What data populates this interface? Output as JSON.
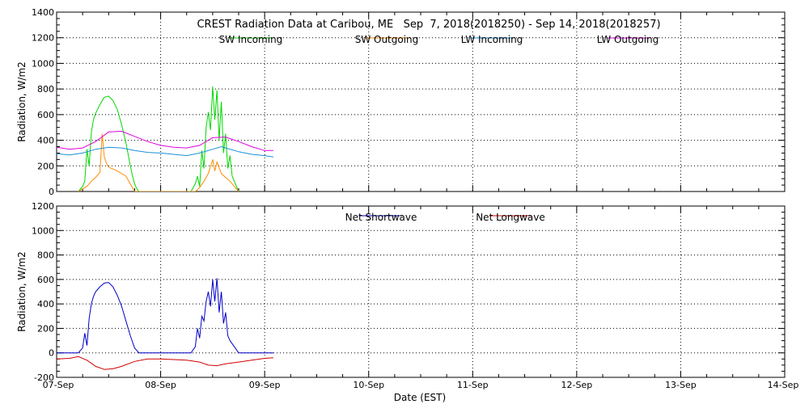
{
  "chart_data": [
    {
      "type": "line",
      "title": "CREST Radiation Data at Caribou, ME   Sep  7, 2018(2018250) - Sep 14, 2018(2018257)",
      "xlabel": "",
      "ylabel": "Radiation, W/m2",
      "ylim": [
        0,
        1400
      ],
      "yticks": [
        0,
        200,
        400,
        600,
        800,
        1000,
        1200,
        1400
      ],
      "xlim": [
        "2018-09-07",
        "2018-09-14"
      ],
      "grid": true,
      "legend_placement": "top",
      "series": [
        {
          "name": "SW Incoming",
          "color": "#00d800",
          "x": [
            "2018-09-07T05:00",
            "2018-09-07T06:00",
            "2018-09-07T06:30",
            "2018-09-07T07:00",
            "2018-09-07T07:30",
            "2018-09-07T08:00",
            "2018-09-07T08:30",
            "2018-09-07T09:00",
            "2018-09-07T10:00",
            "2018-09-07T11:00",
            "2018-09-07T12:00",
            "2018-09-07T13:00",
            "2018-09-07T14:00",
            "2018-09-07T15:00",
            "2018-09-07T16:00",
            "2018-09-07T17:00",
            "2018-09-07T17:30",
            "2018-09-07T18:00",
            "2018-09-07T18:30",
            "2018-09-07T19:00",
            "2018-09-08T07:00",
            "2018-09-08T08:00",
            "2018-09-08T08:30",
            "2018-09-08T09:00",
            "2018-09-08T09:30",
            "2018-09-08T10:00",
            "2018-09-08T10:30",
            "2018-09-08T11:00",
            "2018-09-08T11:30",
            "2018-09-08T12:00",
            "2018-09-08T12:30",
            "2018-09-08T13:00",
            "2018-09-08T13:30",
            "2018-09-08T14:00",
            "2018-09-08T14:30",
            "2018-09-08T15:00",
            "2018-09-08T15:30",
            "2018-09-08T16:00",
            "2018-09-08T16:30",
            "2018-09-08T17:00",
            "2018-09-08T17:30",
            "2018-09-08T18:00"
          ],
          "values": [
            0,
            40,
            80,
            330,
            200,
            460,
            560,
            610,
            680,
            735,
            745,
            710,
            640,
            520,
            380,
            200,
            120,
            60,
            20,
            0,
            0,
            60,
            120,
            40,
            320,
            180,
            500,
            620,
            480,
            820,
            560,
            790,
            400,
            700,
            300,
            450,
            180,
            280,
            120,
            80,
            40,
            0
          ]
        },
        {
          "name": "SW Outgoing",
          "color": "#ff8c00",
          "x": [
            "2018-09-07T05:00",
            "2018-09-07T07:00",
            "2018-09-07T08:00",
            "2018-09-07T09:00",
            "2018-09-07T10:00",
            "2018-09-07T10:30",
            "2018-09-07T11:00",
            "2018-09-07T11:30",
            "2018-09-07T12:00",
            "2018-09-07T14:00",
            "2018-09-07T16:00",
            "2018-09-07T17:00",
            "2018-09-07T18:00",
            "2018-09-08T08:00",
            "2018-09-08T09:00",
            "2018-09-08T10:00",
            "2018-09-08T11:00",
            "2018-09-08T12:00",
            "2018-09-08T12:30",
            "2018-09-08T13:00",
            "2018-09-08T14:00",
            "2018-09-08T15:00",
            "2018-09-08T16:00",
            "2018-09-08T17:00",
            "2018-09-08T18:00"
          ],
          "values": [
            0,
            40,
            80,
            110,
            150,
            450,
            270,
            220,
            190,
            160,
            120,
            60,
            0,
            0,
            30,
            80,
            140,
            250,
            160,
            230,
            140,
            110,
            80,
            40,
            0
          ]
        },
        {
          "name": "LW Incoming",
          "color": "#1a90d8",
          "x": [
            "2018-09-07T00:00",
            "2018-09-07T03:00",
            "2018-09-07T06:00",
            "2018-09-07T09:00",
            "2018-09-07T12:00",
            "2018-09-07T15:00",
            "2018-09-07T18:00",
            "2018-09-07T21:00",
            "2018-09-08T00:00",
            "2018-09-08T03:00",
            "2018-09-08T06:00",
            "2018-09-08T09:00",
            "2018-09-08T12:00",
            "2018-09-08T14:00",
            "2018-09-08T15:00",
            "2018-09-08T18:00",
            "2018-09-08T21:00",
            "2018-09-09T00:00",
            "2018-09-09T02:00"
          ],
          "values": [
            295,
            285,
            300,
            330,
            345,
            340,
            320,
            305,
            300,
            290,
            280,
            300,
            330,
            350,
            340,
            310,
            290,
            280,
            270
          ]
        },
        {
          "name": "LW Outgoing",
          "color": "#e000e0",
          "x": [
            "2018-09-07T00:00",
            "2018-09-07T03:00",
            "2018-09-07T06:00",
            "2018-09-07T09:00",
            "2018-09-07T12:00",
            "2018-09-07T15:00",
            "2018-09-07T18:00",
            "2018-09-07T21:00",
            "2018-09-08T00:00",
            "2018-09-08T03:00",
            "2018-09-08T06:00",
            "2018-09-08T09:00",
            "2018-09-08T12:00",
            "2018-09-08T15:00",
            "2018-09-08T18:00",
            "2018-09-08T21:00",
            "2018-09-09T00:00",
            "2018-09-09T02:00"
          ],
          "values": [
            345,
            330,
            340,
            390,
            465,
            470,
            430,
            390,
            360,
            345,
            340,
            360,
            420,
            425,
            390,
            350,
            320,
            320
          ]
        }
      ]
    },
    {
      "type": "line",
      "title": "",
      "xlabel": "Date (EST)",
      "ylabel": "Radiation, W/m2",
      "ylim": [
        -200,
        1200
      ],
      "yticks": [
        -200,
        0,
        200,
        400,
        600,
        800,
        1000,
        1200
      ],
      "xlim": [
        "2018-09-07",
        "2018-09-14"
      ],
      "xticks": [
        "07-Sep",
        "08-Sep",
        "09-Sep",
        "10-Sep",
        "11-Sep",
        "12-Sep",
        "13-Sep",
        "14-Sep"
      ],
      "grid": true,
      "legend_placement": "top",
      "series": [
        {
          "name": "Net Shortwave",
          "color": "#0000c8",
          "x": [
            "2018-09-07T00:00",
            "2018-09-07T05:00",
            "2018-09-07T06:00",
            "2018-09-07T06:30",
            "2018-09-07T07:00",
            "2018-09-07T07:30",
            "2018-09-07T08:00",
            "2018-09-07T08:30",
            "2018-09-07T09:00",
            "2018-09-07T10:00",
            "2018-09-07T11:00",
            "2018-09-07T12:00",
            "2018-09-07T13:00",
            "2018-09-07T14:00",
            "2018-09-07T15:00",
            "2018-09-07T16:00",
            "2018-09-07T17:00",
            "2018-09-07T18:00",
            "2018-09-07T19:00",
            "2018-09-08T07:00",
            "2018-09-08T08:00",
            "2018-09-08T08:30",
            "2018-09-08T09:00",
            "2018-09-08T09:30",
            "2018-09-08T10:00",
            "2018-09-08T10:30",
            "2018-09-08T11:00",
            "2018-09-08T11:30",
            "2018-09-08T12:00",
            "2018-09-08T12:30",
            "2018-09-08T13:00",
            "2018-09-08T13:30",
            "2018-09-08T14:00",
            "2018-09-08T14:30",
            "2018-09-08T15:00",
            "2018-09-08T15:30",
            "2018-09-08T16:00",
            "2018-09-08T17:00",
            "2018-09-08T18:00",
            "2018-09-09T02:00"
          ],
          "values": [
            0,
            0,
            40,
            160,
            60,
            280,
            400,
            460,
            500,
            540,
            570,
            575,
            540,
            470,
            380,
            260,
            140,
            40,
            0,
            0,
            50,
            200,
            120,
            300,
            260,
            420,
            500,
            380,
            600,
            420,
            610,
            330,
            500,
            240,
            330,
            140,
            100,
            50,
            0,
            0
          ]
        },
        {
          "name": "Net Longwave",
          "color": "#d00000",
          "x": [
            "2018-09-07T00:00",
            "2018-09-07T03:00",
            "2018-09-07T05:00",
            "2018-09-07T07:00",
            "2018-09-07T09:00",
            "2018-09-07T11:00",
            "2018-09-07T13:00",
            "2018-09-07T15:00",
            "2018-09-07T18:00",
            "2018-09-07T21:00",
            "2018-09-08T00:00",
            "2018-09-08T03:00",
            "2018-09-08T06:00",
            "2018-09-08T09:00",
            "2018-09-08T11:00",
            "2018-09-08T13:00",
            "2018-09-08T15:00",
            "2018-09-08T18:00",
            "2018-09-08T21:00",
            "2018-09-09T00:00",
            "2018-09-09T02:00"
          ],
          "values": [
            -50,
            -45,
            -30,
            -60,
            -110,
            -135,
            -130,
            -110,
            -70,
            -50,
            -50,
            -55,
            -60,
            -75,
            -100,
            -105,
            -90,
            -75,
            -60,
            -45,
            -40
          ]
        }
      ]
    }
  ],
  "colors": {
    "axis": "#000000",
    "grid": "#000000",
    "background": "#ffffff"
  }
}
